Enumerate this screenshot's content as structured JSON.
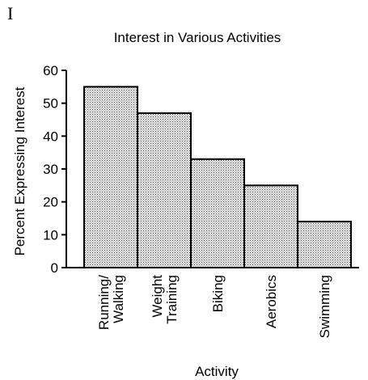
{
  "panel_label": "I",
  "chart_data": {
    "type": "bar",
    "title": "Interest in Various Activities",
    "xlabel": "Activity",
    "ylabel": "Percent Expressing Interest",
    "categories": [
      [
        "Running/",
        "Walking"
      ],
      [
        "Weight",
        "Training"
      ],
      [
        "Biking"
      ],
      [
        "Aerobics"
      ],
      [
        "Swimming"
      ]
    ],
    "values": [
      55,
      47,
      33,
      25,
      14
    ],
    "ylim": [
      0,
      60
    ],
    "yticks": [
      0,
      10,
      20,
      30,
      40,
      50,
      60
    ],
    "grid": false,
    "bar_fill": "#dcdcdc",
    "bar_pattern": "stipple"
  }
}
